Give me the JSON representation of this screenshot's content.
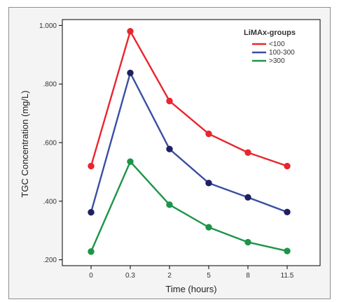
{
  "chart_data": {
    "type": "line",
    "xlabel": "Time (hours)",
    "ylabel": "TGC Concentration (mg/L)",
    "categories": [
      "0",
      "0.3",
      "2",
      "5",
      "8",
      "11.5"
    ],
    "ylim": [
      0.18,
      1.02
    ],
    "y_ticks": [
      {
        "value": 0.2,
        "label": ".200"
      },
      {
        "value": 0.4,
        "label": ".400"
      },
      {
        "value": 0.6,
        "label": ".600"
      },
      {
        "value": 0.8,
        "label": ".800"
      },
      {
        "value": 1.0,
        "label": "1.000"
      }
    ],
    "grid": false,
    "legend": {
      "title": "LiMAx-groups",
      "placement": "top-right"
    },
    "series": [
      {
        "name": "<100",
        "color": "#e8262e",
        "values": [
          0.52,
          0.98,
          0.742,
          0.63,
          0.566,
          0.52
        ]
      },
      {
        "name": "100-300",
        "color": "#3a4fa3",
        "values": [
          0.362,
          0.838,
          0.578,
          0.462,
          0.413,
          0.363
        ]
      },
      {
        "name": ">300",
        "color": "#1d9448",
        "values": [
          0.228,
          0.535,
          0.388,
          0.311,
          0.26,
          0.23
        ]
      }
    ],
    "marker_color": "#1e2060"
  }
}
